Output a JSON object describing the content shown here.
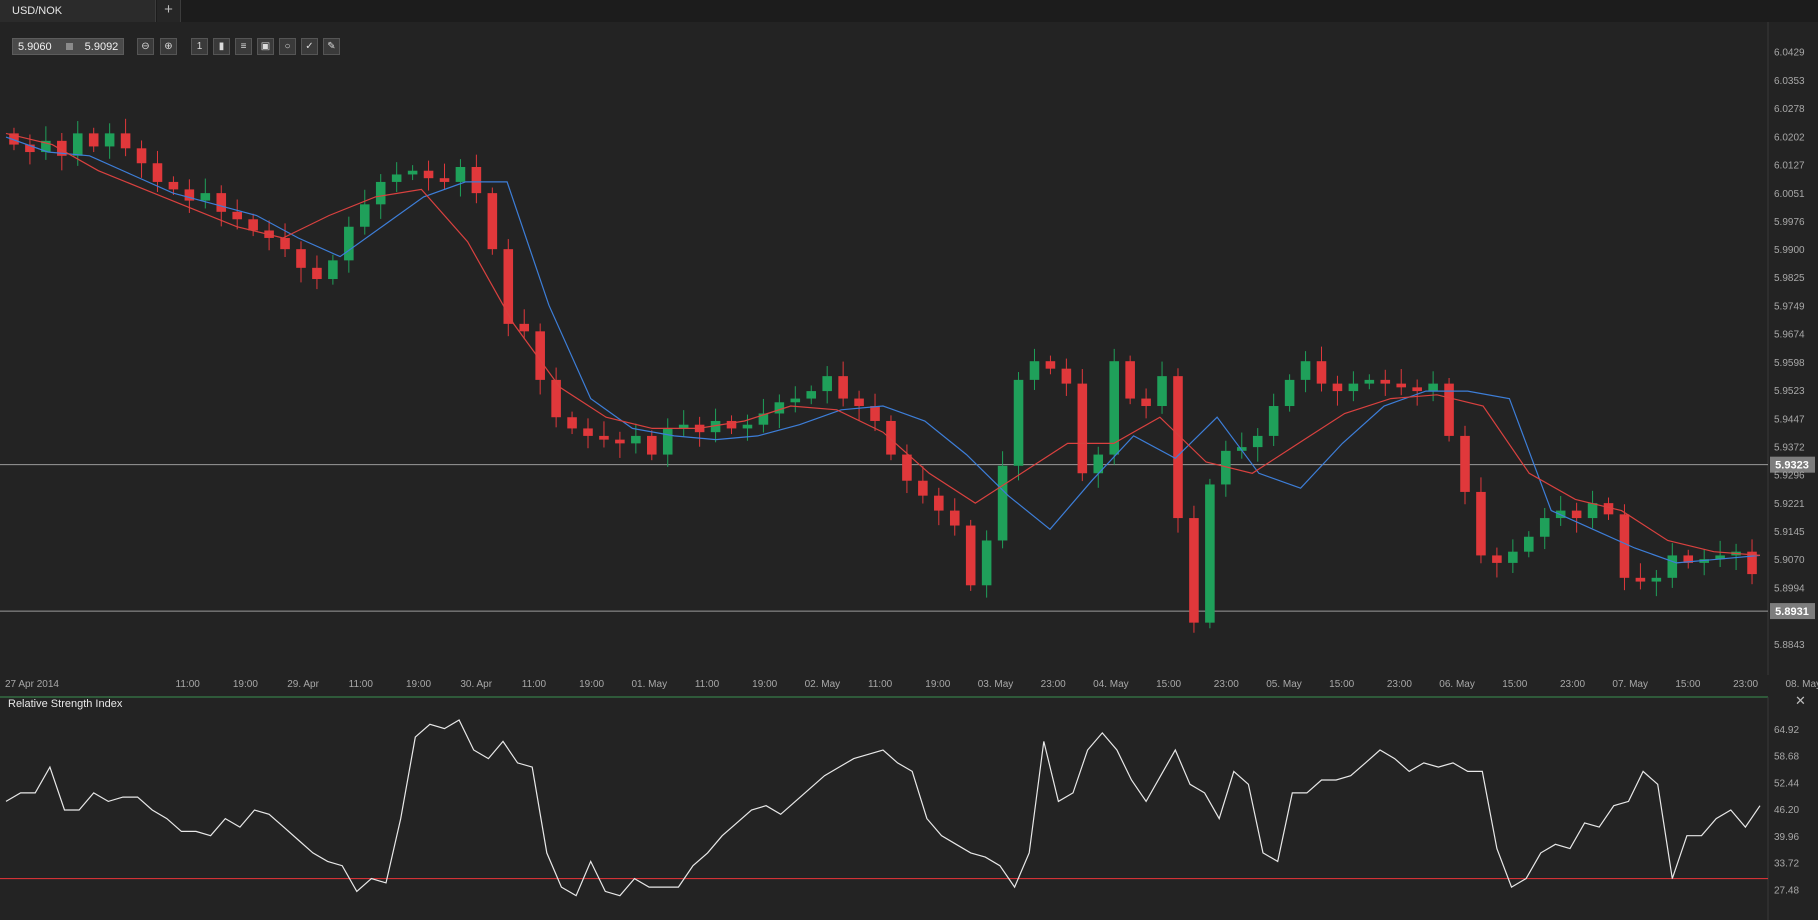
{
  "tabs": [
    {
      "label": "USD/NOK"
    }
  ],
  "add_tab_label": "+",
  "quote": {
    "bid": "5.9060",
    "ask": "5.9092"
  },
  "toolbar": {
    "zoom_out": "zoom-out-icon",
    "zoom_in": "zoom-in-icon",
    "period": "1",
    "tools": [
      "candles-icon",
      "indicators-icon",
      "template-icon",
      "objects-icon",
      "draw-icon",
      "pencil-icon"
    ]
  },
  "colors": {
    "up": "#1fa05a",
    "down": "#e0383b",
    "ema_fast": "#3d7ed8",
    "ema_slow": "#d9413f",
    "rsi": "#e8e8e8",
    "rsi_level": "#d23236"
  },
  "price_axis": {
    "ticks": [
      "6.0429",
      "6.0353",
      "6.0278",
      "6.0202",
      "6.0127",
      "6.0051",
      "5.9976",
      "5.9900",
      "5.9825",
      "5.9749",
      "5.9674",
      "5.9598",
      "5.9523",
      "5.9447",
      "5.9372",
      "5.9296",
      "5.9221",
      "5.9145",
      "5.9070",
      "5.8994",
      "5.8843"
    ],
    "tick_values": [
      6.0429,
      6.0353,
      6.0278,
      6.0202,
      6.0127,
      6.0051,
      5.9976,
      5.99,
      5.9825,
      5.9749,
      5.9674,
      5.9598,
      5.9523,
      5.9447,
      5.9372,
      5.9296,
      5.9221,
      5.9145,
      5.907,
      5.8994,
      5.8843
    ]
  },
  "price_lines": [
    {
      "label": "5.9323",
      "value": 5.9323
    },
    {
      "label": "5.8931",
      "value": 5.8931
    }
  ],
  "time_axis": [
    "27 Apr 2014",
    "11:00",
    "19:00",
    "29. Apr",
    "11:00",
    "19:00",
    "30. Apr",
    "11:00",
    "19:00",
    "01. May",
    "11:00",
    "19:00",
    "02. May",
    "11:00",
    "19:00",
    "03. May",
    "23:00",
    "04. May",
    "15:00",
    "23:00",
    "05. May",
    "15:00",
    "23:00",
    "06. May",
    "15:00",
    "23:00",
    "07. May",
    "15:00",
    "23:00",
    "08. May"
  ],
  "rsi": {
    "title": "Relative Strength Index",
    "ticks": [
      "64.92",
      "58.68",
      "52.44",
      "46.20",
      "39.96",
      "33.72",
      "27.48"
    ],
    "tick_values": [
      64.92,
      58.68,
      52.44,
      46.2,
      39.96,
      33.72,
      27.48
    ],
    "level": 30,
    "values": [
      48,
      50,
      50,
      56,
      46,
      46,
      50,
      48,
      49,
      49,
      46,
      44,
      41,
      41,
      40,
      44,
      42,
      46,
      45,
      42,
      39,
      36,
      34,
      33,
      27,
      30,
      29,
      44,
      63,
      66,
      65,
      67,
      60,
      58,
      62,
      57,
      56,
      36,
      28,
      26,
      34,
      27,
      26,
      30,
      28,
      28,
      28,
      33,
      36,
      40,
      43,
      46,
      47,
      45,
      48,
      51,
      54,
      56,
      58,
      59,
      60,
      57,
      55,
      44,
      40,
      38,
      36,
      35,
      33,
      28,
      36,
      62,
      48,
      50,
      60,
      64,
      60,
      53,
      48,
      54,
      60,
      52,
      50,
      44,
      55,
      52,
      36,
      34,
      50,
      50,
      53,
      53,
      54,
      57,
      60,
      58,
      55,
      57,
      56,
      57,
      55,
      55,
      37,
      28,
      30,
      36,
      38,
      37,
      43,
      42,
      47,
      48,
      55,
      52,
      30,
      40,
      40,
      44,
      46,
      42,
      47
    ]
  },
  "chart_data": {
    "type": "candlestick",
    "instrument": "USD/NOK",
    "ylim": [
      5.88,
      6.046
    ],
    "series": [
      {
        "name": "",
        "close": [
          6.018,
          6.016,
          6.019,
          6.015,
          6.021,
          6.0175,
          6.021,
          6.017,
          6.013,
          6.008,
          6.006,
          6.003,
          6.005,
          6.0,
          5.998,
          5.995,
          5.993,
          5.99,
          5.985,
          5.982,
          5.987,
          5.996,
          6.002,
          6.008,
          6.01,
          6.011,
          6.009,
          6.008,
          6.012,
          6.005,
          5.99,
          5.97,
          5.968,
          5.955,
          5.945,
          5.942,
          5.94,
          5.939,
          5.938,
          5.94,
          5.935,
          5.942,
          5.943,
          5.941,
          5.944,
          5.942,
          5.943,
          5.946,
          5.949,
          5.95,
          5.952,
          5.956,
          5.95,
          5.948,
          5.944,
          5.935,
          5.928,
          5.924,
          5.92,
          5.916,
          5.9,
          5.912,
          5.932,
          5.955,
          5.96,
          5.958,
          5.954,
          5.93,
          5.935,
          5.96,
          5.95,
          5.948,
          5.956,
          5.918,
          5.89,
          5.927,
          5.936,
          5.937,
          5.94,
          5.948,
          5.955,
          5.96,
          5.954,
          5.952,
          5.954,
          5.955,
          5.954,
          5.953,
          5.952,
          5.954,
          5.94,
          5.925,
          5.908,
          5.906,
          5.909,
          5.913,
          5.918,
          5.92,
          5.918,
          5.922,
          5.919,
          5.902,
          5.901,
          5.902,
          5.908,
          5.906,
          5.907,
          5.908,
          5.909,
          5.903
        ]
      },
      {
        "name": "",
        "ema_fast": [
          6.02,
          6.016,
          6.015,
          6.01,
          6.005,
          6.002,
          5.999,
          5.993,
          5.988,
          5.996,
          6.004,
          6.008,
          6.008,
          5.975,
          5.95,
          5.942,
          5.94,
          5.939,
          5.94,
          5.943,
          5.947,
          5.948,
          5.944,
          5.935,
          5.924,
          5.915,
          5.928,
          5.94,
          5.934,
          5.945,
          5.93,
          5.926,
          5.938,
          5.948,
          5.952,
          5.952,
          5.95,
          5.92,
          5.915,
          5.91,
          5.906,
          5.907,
          5.908
        ]
      },
      {
        "name": "",
        "ema_slow": [
          6.021,
          6.018,
          6.011,
          6.006,
          6.001,
          5.996,
          5.993,
          5.999,
          6.004,
          6.006,
          5.992,
          5.97,
          5.953,
          5.945,
          5.942,
          5.942,
          5.944,
          5.948,
          5.947,
          5.941,
          5.93,
          5.922,
          5.93,
          5.938,
          5.938,
          5.945,
          5.933,
          5.93,
          5.938,
          5.946,
          5.95,
          5.951,
          5.948,
          5.93,
          5.923,
          5.92,
          5.912,
          5.909,
          5.908
        ]
      }
    ]
  }
}
